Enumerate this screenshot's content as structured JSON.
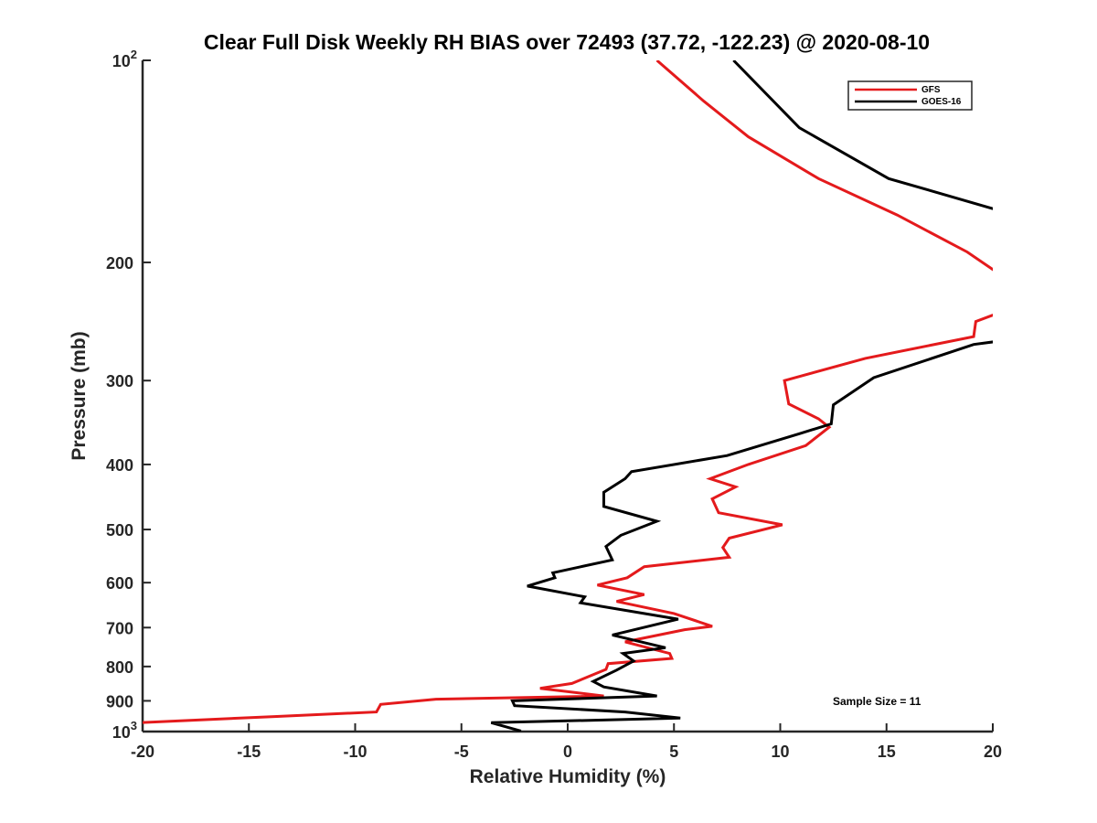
{
  "chart_data": {
    "type": "line",
    "title": "Clear Full Disk Weekly RH BIAS over 72493 (37.72, -122.23) @ 2020-08-10",
    "xlabel": "Relative Humidity (%)",
    "ylabel": "Pressure (mb)",
    "xlim": [
      -20,
      20
    ],
    "ylim": [
      100,
      1000
    ],
    "y_scale": "log",
    "y_reversed": true,
    "x_ticks": [
      "-20",
      "-15",
      "-10",
      "-5",
      "0",
      "5",
      "10",
      "15",
      "20"
    ],
    "y_ticks": [
      {
        "value": 100,
        "base": "10",
        "exp": "2"
      },
      {
        "value": 200,
        "label": "200"
      },
      {
        "value": 300,
        "label": "300"
      },
      {
        "value": 400,
        "label": "400"
      },
      {
        "value": 500,
        "label": "500"
      },
      {
        "value": 600,
        "label": "600"
      },
      {
        "value": 700,
        "label": "700"
      },
      {
        "value": 800,
        "label": "800"
      },
      {
        "value": 900,
        "label": "900"
      },
      {
        "value": 1000,
        "base": "10",
        "exp": "3"
      }
    ],
    "grid": false,
    "legend_position": "top-right",
    "annotation": "Sample Size = 11",
    "series": [
      {
        "name": "GFS",
        "color": "#e41a1c",
        "points": [
          [
            4.2,
            100
          ],
          [
            6.4,
            115
          ],
          [
            8.5,
            130
          ],
          [
            11.8,
            150
          ],
          [
            15.5,
            170
          ],
          [
            18.8,
            193
          ],
          [
            20.2,
            207
          ],
          [
            20.4,
            237
          ],
          [
            19.2,
            245
          ],
          [
            19.1,
            258
          ],
          [
            14.0,
            278
          ],
          [
            10.2,
            300
          ],
          [
            10.4,
            325
          ],
          [
            11.8,
            342
          ],
          [
            12.3,
            352
          ],
          [
            11.2,
            375
          ],
          [
            8.5,
            400
          ],
          [
            6.7,
            420
          ],
          [
            7.9,
            432
          ],
          [
            6.8,
            450
          ],
          [
            7.1,
            472
          ],
          [
            10.1,
            492
          ],
          [
            7.6,
            515
          ],
          [
            7.3,
            532
          ],
          [
            7.6,
            550
          ],
          [
            3.6,
            568
          ],
          [
            2.8,
            590
          ],
          [
            1.4,
            605
          ],
          [
            3.6,
            625
          ],
          [
            2.3,
            640
          ],
          [
            5.0,
            667
          ],
          [
            6.8,
            697
          ],
          [
            5.5,
            705
          ],
          [
            2.7,
            735
          ],
          [
            4.8,
            765
          ],
          [
            4.9,
            778
          ],
          [
            1.9,
            792
          ],
          [
            1.8,
            808
          ],
          [
            0.2,
            848
          ],
          [
            -1.3,
            862
          ],
          [
            1.7,
            885
          ],
          [
            -6.2,
            895
          ],
          [
            -8.8,
            911
          ],
          [
            -9.0,
            935
          ],
          [
            -13.8,
            950
          ],
          [
            -20.2,
            970
          ]
        ]
      },
      {
        "name": "GOES-16",
        "color": "#000000",
        "points": [
          [
            7.8,
            100
          ],
          [
            10.9,
            126
          ],
          [
            15.1,
            150
          ],
          [
            20.2,
            167
          ],
          [
            20.3,
            262
          ],
          [
            19.1,
            265
          ],
          [
            14.4,
            297
          ],
          [
            12.5,
            326
          ],
          [
            12.4,
            348
          ],
          [
            10.9,
            360
          ],
          [
            7.5,
            388
          ],
          [
            3.0,
            410
          ],
          [
            2.7,
            420
          ],
          [
            1.7,
            440
          ],
          [
            1.7,
            462
          ],
          [
            4.2,
            486
          ],
          [
            2.5,
            510
          ],
          [
            1.8,
            530
          ],
          [
            2.1,
            555
          ],
          [
            -0.7,
            580
          ],
          [
            -0.6,
            590
          ],
          [
            -1.9,
            607
          ],
          [
            0.8,
            630
          ],
          [
            0.6,
            643
          ],
          [
            5.2,
            680
          ],
          [
            2.1,
            718
          ],
          [
            4.6,
            750
          ],
          [
            2.6,
            765
          ],
          [
            3.1,
            785
          ],
          [
            2.3,
            810
          ],
          [
            1.2,
            842
          ],
          [
            1.7,
            858
          ],
          [
            4.2,
            885
          ],
          [
            -2.6,
            900
          ],
          [
            -2.5,
            915
          ],
          [
            2.7,
            935
          ],
          [
            5.3,
            955
          ],
          [
            -3.6,
            970
          ],
          [
            -2.2,
            998
          ]
        ]
      }
    ]
  }
}
